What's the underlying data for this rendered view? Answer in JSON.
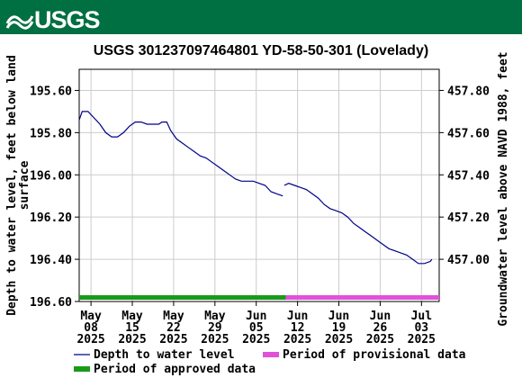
{
  "header": {
    "logo_text": "USGS",
    "brand_color": "#006f41"
  },
  "chart_data": {
    "type": "line",
    "title": "USGS 301237097464801 YD-58-50-301 (Lovelady)",
    "ylabel_left_line1": "Depth to water level, feet below land",
    "ylabel_left_line2": "surface",
    "ylabel_right": "Groundwater level above NAVD 1988, feet",
    "y_left_range": [
      195.5,
      196.6
    ],
    "y_left_inverted": true,
    "y_left_ticks": [
      "195.60",
      "195.80",
      "196.00",
      "196.20",
      "196.40",
      "196.60"
    ],
    "y_left_tick_values": [
      195.6,
      195.8,
      196.0,
      196.2,
      196.4,
      196.6
    ],
    "y_right_ticks": [
      "457.80",
      "457.60",
      "457.40",
      "457.20",
      "457.00"
    ],
    "y_right_tick_values": [
      457.8,
      457.6,
      457.4,
      457.2,
      457.0
    ],
    "land_surface_elevation_offset": 653.4,
    "x_range": [
      "2025-05-06",
      "2025-07-06"
    ],
    "x_ticks": [
      {
        "date": "2025-05-08",
        "month": "May",
        "day": "08",
        "year": "2025"
      },
      {
        "date": "2025-05-15",
        "month": "May",
        "day": "15",
        "year": "2025"
      },
      {
        "date": "2025-05-22",
        "month": "May",
        "day": "22",
        "year": "2025"
      },
      {
        "date": "2025-05-29",
        "month": "May",
        "day": "29",
        "year": "2025"
      },
      {
        "date": "2025-06-05",
        "month": "Jun",
        "day": "05",
        "year": "2025"
      },
      {
        "date": "2025-06-12",
        "month": "Jun",
        "day": "12",
        "year": "2025"
      },
      {
        "date": "2025-06-19",
        "month": "Jun",
        "day": "19",
        "year": "2025"
      },
      {
        "date": "2025-06-26",
        "month": "Jun",
        "day": "26",
        "year": "2025"
      },
      {
        "date": "2025-07-03",
        "month": "Jul",
        "day": "03",
        "year": "2025"
      }
    ],
    "grid": true,
    "series": [
      {
        "name": "Depth to water level",
        "color": "#00008b",
        "segments": [
          [
            [
              "2025-05-06T00:00",
              195.74
            ],
            [
              "2025-05-06T12:00",
              195.7
            ],
            [
              "2025-05-07T12:00",
              195.7
            ],
            [
              "2025-05-08T12:00",
              195.73
            ],
            [
              "2025-05-09T12:00",
              195.76
            ],
            [
              "2025-05-10T12:00",
              195.8
            ],
            [
              "2025-05-11T12:00",
              195.82
            ],
            [
              "2025-05-12T12:00",
              195.82
            ],
            [
              "2025-05-13T12:00",
              195.8
            ],
            [
              "2025-05-14T12:00",
              195.77
            ],
            [
              "2025-05-15T12:00",
              195.75
            ],
            [
              "2025-05-16T12:00",
              195.75
            ],
            [
              "2025-05-17T12:00",
              195.76
            ],
            [
              "2025-05-18T12:00",
              195.76
            ],
            [
              "2025-05-19T12:00",
              195.76
            ],
            [
              "2025-05-20T00:00",
              195.75
            ],
            [
              "2025-05-20T20:00",
              195.75
            ],
            [
              "2025-05-21T12:00",
              195.79
            ],
            [
              "2025-05-22T12:00",
              195.83
            ],
            [
              "2025-05-23T12:00",
              195.85
            ],
            [
              "2025-05-24T12:00",
              195.87
            ],
            [
              "2025-05-25T12:00",
              195.89
            ],
            [
              "2025-05-26T12:00",
              195.91
            ],
            [
              "2025-05-27T12:00",
              195.92
            ],
            [
              "2025-05-28T12:00",
              195.94
            ],
            [
              "2025-05-29T12:00",
              195.96
            ],
            [
              "2025-05-30T12:00",
              195.98
            ],
            [
              "2025-05-31T12:00",
              196.0
            ],
            [
              "2025-06-01T12:00",
              196.02
            ],
            [
              "2025-06-02T12:00",
              196.03
            ],
            [
              "2025-06-03T12:00",
              196.03
            ],
            [
              "2025-06-04T12:00",
              196.03
            ],
            [
              "2025-06-05T12:00",
              196.04
            ],
            [
              "2025-06-06T12:00",
              196.05
            ],
            [
              "2025-06-07T12:00",
              196.08
            ],
            [
              "2025-06-08T12:00",
              196.09
            ],
            [
              "2025-06-09T12:00",
              196.1
            ]
          ],
          [
            [
              "2025-06-09T18:00",
              196.05
            ],
            [
              "2025-06-10T12:00",
              196.04
            ],
            [
              "2025-06-11T12:00",
              196.05
            ],
            [
              "2025-06-12T12:00",
              196.06
            ],
            [
              "2025-06-13T12:00",
              196.07
            ],
            [
              "2025-06-14T12:00",
              196.09
            ],
            [
              "2025-06-15T12:00",
              196.11
            ],
            [
              "2025-06-16T12:00",
              196.14
            ],
            [
              "2025-06-17T12:00",
              196.16
            ],
            [
              "2025-06-18T12:00",
              196.17
            ],
            [
              "2025-06-19T12:00",
              196.18
            ],
            [
              "2025-06-20T12:00",
              196.2
            ],
            [
              "2025-06-21T12:00",
              196.23
            ],
            [
              "2025-06-22T12:00",
              196.25
            ],
            [
              "2025-06-23T12:00",
              196.27
            ],
            [
              "2025-06-24T12:00",
              196.29
            ],
            [
              "2025-06-25T12:00",
              196.31
            ],
            [
              "2025-06-26T12:00",
              196.33
            ],
            [
              "2025-06-27T12:00",
              196.35
            ],
            [
              "2025-06-28T12:00",
              196.36
            ],
            [
              "2025-06-29T12:00",
              196.37
            ],
            [
              "2025-06-30T12:00",
              196.38
            ],
            [
              "2025-07-01T12:00",
              196.4
            ],
            [
              "2025-07-02T12:00",
              196.42
            ],
            [
              "2025-07-03T12:00",
              196.42
            ],
            [
              "2025-07-04T12:00",
              196.41
            ],
            [
              "2025-07-04T18:00",
              196.4
            ]
          ]
        ]
      }
    ],
    "approval_bars": [
      {
        "name": "Period of approved data",
        "color": "#1a9a1a",
        "start": "2025-05-06",
        "end": "2025-06-10"
      },
      {
        "name": "Period of provisional data",
        "color": "#e052d8",
        "start": "2025-06-10",
        "end": "2025-07-06"
      }
    ],
    "legend": [
      {
        "label": "Depth to water level",
        "color": "#00008b",
        "kind": "line"
      },
      {
        "label": "Period of provisional data",
        "color": "#e052d8",
        "kind": "bar"
      },
      {
        "label": "Period of approved data",
        "color": "#1a9a1a",
        "kind": "bar"
      }
    ],
    "legend_placement": "bottom"
  }
}
